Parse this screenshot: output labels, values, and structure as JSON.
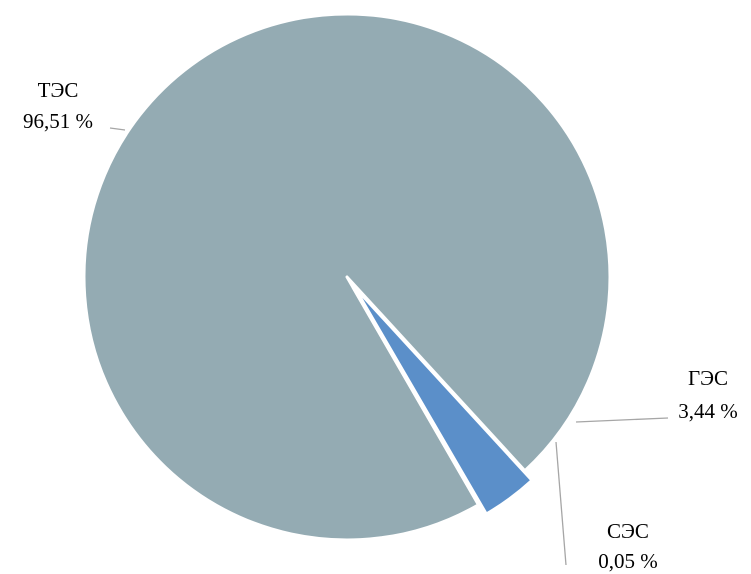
{
  "chart_data": {
    "type": "pie",
    "title": "",
    "slices": [
      {
        "name": "ТЭС",
        "value": 96.51,
        "label_text": "96,51 %",
        "color": "#94abb3"
      },
      {
        "name": "ГЭС",
        "value": 3.44,
        "label_text": "3,44 %",
        "color": "#5b8fc9"
      },
      {
        "name": "СЭС",
        "value": 0.05,
        "label_text": "0,05 %",
        "color": "#f4e7c6"
      }
    ],
    "leader_line_color": "#a6a6a6",
    "label_position": "outside",
    "legend": "none",
    "exploded": true
  }
}
